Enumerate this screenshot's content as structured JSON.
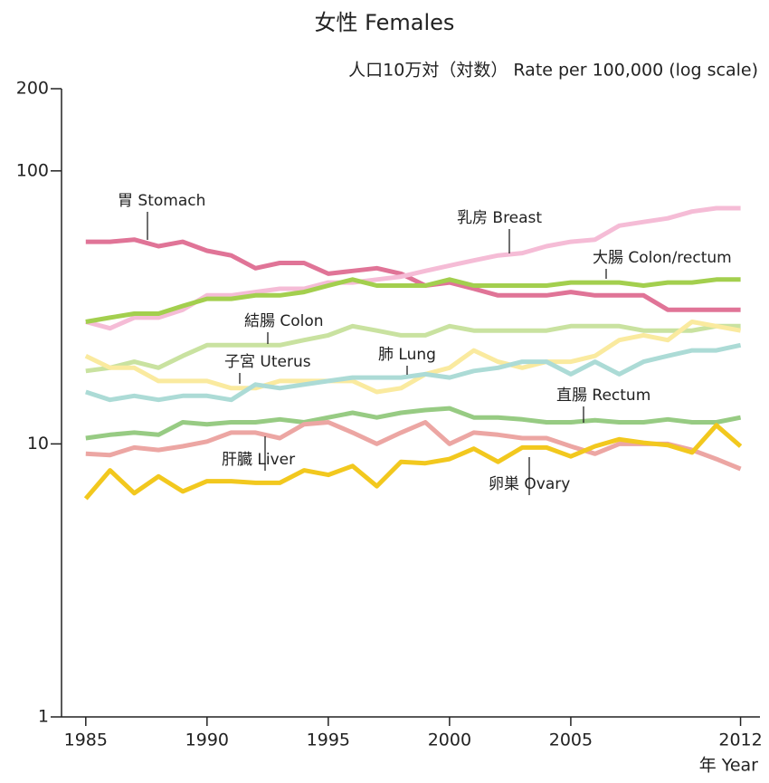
{
  "chart_data": {
    "type": "line",
    "title": "女性 Females",
    "y_label": "人口10万対（対数） Rate per 100,000 (log scale)",
    "x_label": "年 Year",
    "x": [
      1985,
      1986,
      1987,
      1988,
      1989,
      1990,
      1991,
      1992,
      1993,
      1994,
      1995,
      1996,
      1997,
      1998,
      1999,
      2000,
      2001,
      2002,
      2003,
      2004,
      2005,
      2006,
      2007,
      2008,
      2009,
      2010,
      2011,
      2012
    ],
    "xlim": [
      1984,
      2012.8
    ],
    "xticks": [
      1985,
      1990,
      1995,
      2000,
      2005,
      2012
    ],
    "ylim": [
      1,
      200
    ],
    "yticks": [
      1,
      10,
      100,
      200
    ],
    "log_y": true,
    "grid": false,
    "series": [
      {
        "name": "胃 Stomach",
        "color": "#e07497",
        "values": [
          55,
          55,
          56,
          53,
          55,
          51,
          49,
          44,
          46,
          46,
          42,
          43,
          44,
          42,
          38,
          39,
          37,
          35,
          35,
          35,
          36,
          35,
          35,
          35,
          31,
          31,
          31,
          31
        ]
      },
      {
        "name": "乳房 Breast",
        "color": "#f5bcd6",
        "values": [
          28,
          26.5,
          29,
          29,
          31,
          35,
          35,
          36,
          37,
          37,
          39,
          39,
          40,
          41,
          43,
          45,
          47,
          49,
          50,
          53,
          55,
          56,
          63,
          65,
          67,
          71,
          73,
          73
        ]
      },
      {
        "name": "大腸 Colon/rectum",
        "color": "#a3cf4e",
        "values": [
          28,
          29,
          30,
          30,
          32,
          34,
          34,
          35,
          35,
          36,
          38,
          40,
          38,
          38,
          38,
          40,
          38,
          38,
          38,
          38,
          39,
          39,
          39,
          38,
          39,
          39,
          40,
          40
        ]
      },
      {
        "name": "結腸 Colon",
        "color": "#c9e2a0",
        "values": [
          18.5,
          19,
          20,
          19,
          21,
          23,
          23,
          23,
          23,
          24,
          25,
          27,
          26,
          25,
          25,
          27,
          26,
          26,
          26,
          26,
          27,
          27,
          27,
          26,
          26,
          26,
          27,
          27
        ]
      },
      {
        "name": "子宮 Uterus",
        "color": "#faea9f",
        "values": [
          21,
          19,
          19,
          17,
          17,
          17,
          16,
          16,
          17,
          17,
          17,
          17,
          15.5,
          16,
          18,
          19,
          22,
          20,
          19,
          20,
          20,
          21,
          24,
          25,
          24,
          28,
          27,
          26
        ]
      },
      {
        "name": "肺 Lung",
        "color": "#acdbd6",
        "values": [
          15.5,
          14.5,
          15,
          14.5,
          15,
          15,
          14.5,
          16.5,
          16,
          16.5,
          17,
          17.5,
          17.5,
          17.5,
          18,
          17.5,
          18.5,
          19,
          20,
          20,
          18,
          20,
          18,
          20,
          21,
          22,
          22,
          23
        ]
      },
      {
        "name": "直腸 Rectum",
        "color": "#97cb83",
        "values": [
          10.5,
          10.8,
          11,
          10.8,
          12,
          11.8,
          12,
          12,
          12.3,
          12,
          12.5,
          13,
          12.5,
          13,
          13.3,
          13.5,
          12.5,
          12.5,
          12.3,
          12,
          12,
          12.2,
          12,
          12,
          12.3,
          12,
          12,
          12.5
        ]
      },
      {
        "name": "肝臓 Liver",
        "color": "#eca6a3",
        "values": [
          9.2,
          9.1,
          9.7,
          9.5,
          9.8,
          10.2,
          11,
          11,
          10.5,
          11.8,
          12,
          11,
          10,
          11,
          12,
          10,
          11,
          10.8,
          10.5,
          10.5,
          9.8,
          9.2,
          10,
          10,
          10,
          9.5,
          8.8,
          8.1
        ]
      },
      {
        "name": "卵巣 Ovary",
        "color": "#f2c81e",
        "values": [
          6.3,
          8.0,
          6.6,
          7.6,
          6.7,
          7.3,
          7.3,
          7.2,
          7.2,
          8.0,
          7.7,
          8.3,
          7.0,
          8.6,
          8.5,
          8.8,
          9.6,
          8.6,
          9.7,
          9.7,
          9.0,
          9.8,
          10.4,
          10.1,
          9.9,
          9.3,
          11.7,
          9.8
        ]
      }
    ]
  }
}
